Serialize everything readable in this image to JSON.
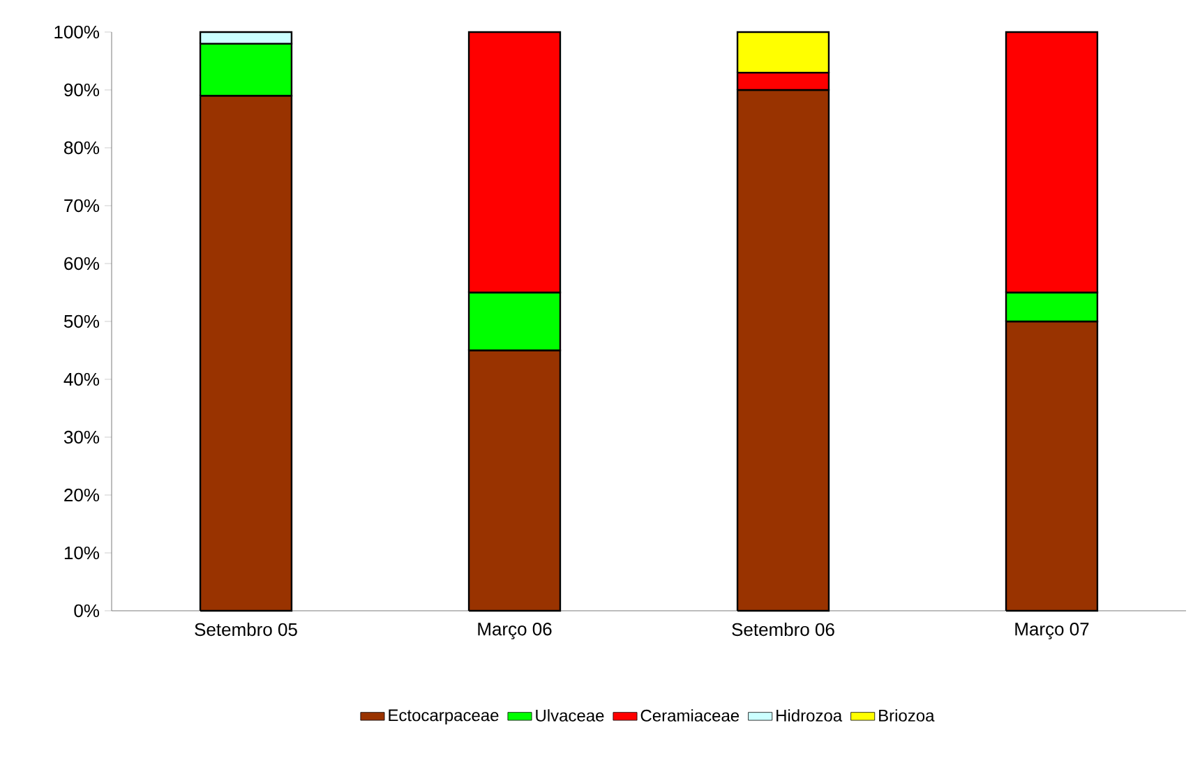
{
  "chart_data": {
    "type": "bar",
    "stacked": true,
    "categories": [
      "Setembro 05",
      "Março 06",
      "Setembro 06",
      "Março 07"
    ],
    "series": [
      {
        "name": "Ectocarpaceae",
        "color": "#993300",
        "values": [
          89,
          45,
          90,
          50
        ]
      },
      {
        "name": "Ulvaceae",
        "color": "#00ff00",
        "values": [
          9,
          10,
          null,
          5
        ]
      },
      {
        "name": "Ceramiaceae",
        "color": "#ff0000",
        "values": [
          null,
          45,
          3,
          45
        ]
      },
      {
        "name": "Hidrozoa",
        "color": "#ccffff",
        "values": [
          2,
          null,
          null,
          null
        ]
      },
      {
        "name": "Briozoa",
        "color": "#ffff00",
        "values": [
          null,
          null,
          7,
          null
        ]
      }
    ],
    "ylim": [
      0,
      100
    ],
    "yticks": [
      {
        "value": 0,
        "label": "0%"
      },
      {
        "value": 10,
        "label": "10%"
      },
      {
        "value": 20,
        "label": "20%"
      },
      {
        "value": 30,
        "label": "30%"
      },
      {
        "value": 40,
        "label": "40%"
      },
      {
        "value": 50,
        "label": "50%"
      },
      {
        "value": 60,
        "label": "60%"
      },
      {
        "value": 70,
        "label": "70%"
      },
      {
        "value": 80,
        "label": "80%"
      },
      {
        "value": 90,
        "label": "90%"
      },
      {
        "value": 100,
        "label": "100%"
      }
    ],
    "legend": "bottom"
  }
}
